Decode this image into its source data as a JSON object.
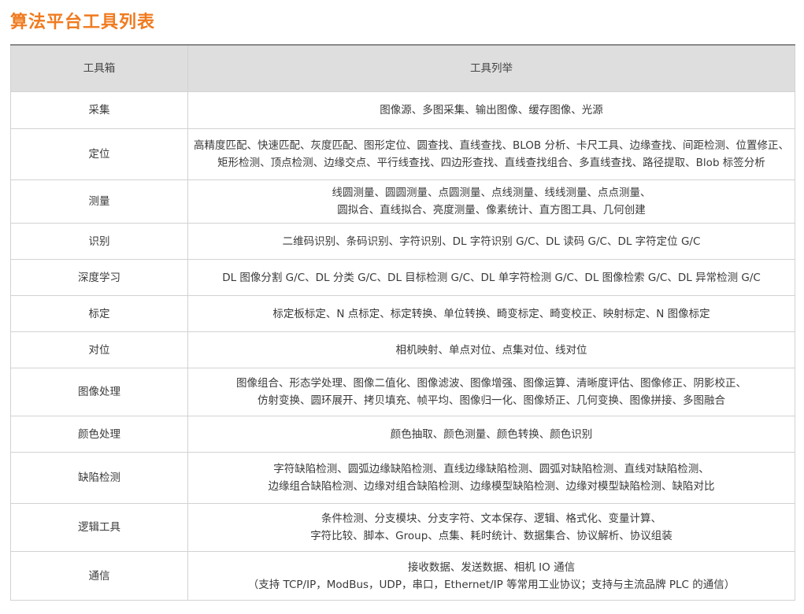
{
  "title": "算法平台工具列表",
  "table": {
    "headers": [
      "工具箱",
      "工具列举"
    ],
    "rows": [
      {
        "category": "采集",
        "lines": [
          "图像源、多图采集、输出图像、缓存图像、光源"
        ]
      },
      {
        "category": "定位",
        "lines": [
          "高精度匹配、快速匹配、灰度匹配、图形定位、圆查找、直线查找、BLOB 分析、卡尺工具、边缘查找、间距检测、位置修正、",
          "矩形检测、顶点检测、边缘交点、平行线查找、四边形查找、直线查找组合、多直线查找、路径提取、Blob 标签分析"
        ]
      },
      {
        "category": "测量",
        "lines": [
          "线圆测量、圆圆测量、点圆测量、点线测量、线线测量、点点测量、",
          "圆拟合、直线拟合、亮度测量、像素统计、直方图工具、几何创建"
        ]
      },
      {
        "category": "识别",
        "lines": [
          "二维码识别、条码识别、字符识别、DL 字符识别 G/C、DL 读码 G/C、DL 字符定位 G/C"
        ]
      },
      {
        "category": "深度学习",
        "lines": [
          "DL 图像分割 G/C、DL 分类 G/C、DL 目标检测 G/C、DL 单字符检测 G/C、DL 图像检索 G/C、DL 异常检测 G/C"
        ]
      },
      {
        "category": "标定",
        "lines": [
          "标定板标定、N 点标定、标定转换、单位转换、畸变标定、畸变校正、映射标定、N 图像标定"
        ]
      },
      {
        "category": "对位",
        "lines": [
          "相机映射、单点对位、点集对位、线对位"
        ]
      },
      {
        "category": "图像处理",
        "lines": [
          "图像组合、形态学处理、图像二值化、图像滤波、图像增强、图像运算、清晰度评估、图像修正、阴影校正、",
          "仿射变换、圆环展开、拷贝填充、帧平均、图像归一化、图像矫正、几何变换、图像拼接、多图融合"
        ]
      },
      {
        "category": "颜色处理",
        "lines": [
          "颜色抽取、颜色测量、颜色转换、颜色识别"
        ]
      },
      {
        "category": "缺陷检测",
        "lines": [
          "字符缺陷检测、圆弧边缘缺陷检测、直线边缘缺陷检测、圆弧对缺陷检测、直线对缺陷检测、",
          "边缘组合缺陷检测、边缘对组合缺陷检测、边缘模型缺陷检测、边缘对模型缺陷检测、缺陷对比"
        ]
      },
      {
        "category": "逻辑工具",
        "lines": [
          "条件检测、分支模块、分支字符、文本保存、逻辑、格式化、变量计算、",
          "字符比较、脚本、Group、点集、耗时统计、数据集合、协议解析、协议组装"
        ]
      },
      {
        "category": "通信",
        "lines": [
          "接收数据、发送数据、相机 IO 通信",
          "（支持 TCP/IP，ModBus，UDP，串口，Ethernet/IP 等常用工业协议；支持与主流品牌 PLC 的通信）"
        ]
      }
    ]
  },
  "colors": {
    "title": "#f07a1e",
    "header_bg": "#dedede",
    "border": "#d2d2d2"
  }
}
